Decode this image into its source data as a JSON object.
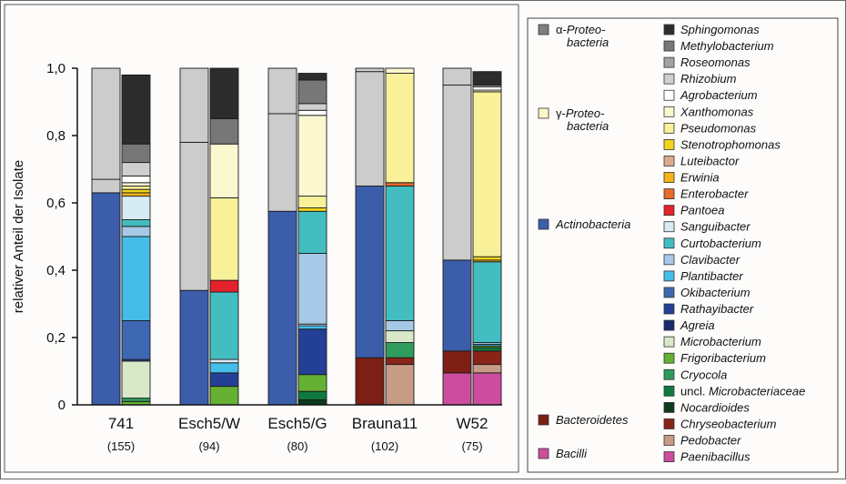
{
  "chart_data": {
    "type": "bar",
    "ylabel": "relativer Anteil der Isolate",
    "ylim": [
      0,
      1
    ],
    "ytick_labels": [
      "0",
      "0,2",
      "0,4",
      "0,6",
      "0,8",
      "1,0"
    ],
    "yticks": [
      0,
      0.2,
      0.4,
      0.6,
      0.8,
      1.0
    ],
    "groups": [
      {
        "name": "741",
        "n": "(155)"
      },
      {
        "name": "Esch5/W",
        "n": "(94)"
      },
      {
        "name": "Esch5/G",
        "n": "(80)"
      },
      {
        "name": "Brauna11",
        "n": "(102)"
      },
      {
        "name": "W52",
        "n": "(75)"
      }
    ],
    "phylum_legend": [
      {
        "label_parts": [
          "α-",
          "Proteo-",
          "bacteria"
        ],
        "color": "#7f7f7f"
      },
      {
        "label_parts": [
          "γ-",
          "Proteo-",
          "bacteria"
        ],
        "color": "#fbf7c8"
      },
      {
        "label_parts": [
          "",
          "Actinobacteria",
          ""
        ],
        "color": "#3b5daa"
      },
      {
        "label_parts": [
          "",
          "Bacteroidetes",
          ""
        ],
        "color": "#7e1f15"
      },
      {
        "label_parts": [
          "",
          "Bacilli",
          ""
        ],
        "color": "#cc4d9e"
      }
    ],
    "genus_legend": [
      {
        "name": "Sphingomonas",
        "color": "#2c2c2c"
      },
      {
        "name": "Methylobacterium",
        "color": "#777777"
      },
      {
        "name": "Roseomonas",
        "color": "#a3a3a3"
      },
      {
        "name": "Rhizobium",
        "color": "#cfcfcf"
      },
      {
        "name": "Agrobacterium",
        "color": "#ffffff"
      },
      {
        "name": "Xanthomonas",
        "color": "#fbf7cf"
      },
      {
        "name": "Pseudomonas",
        "color": "#f8f19a"
      },
      {
        "name": "Stenotrophomonas",
        "color": "#f3d51b"
      },
      {
        "name": "Luteibactor",
        "color": "#dcab8c"
      },
      {
        "name": "Erwinia",
        "color": "#f5b316"
      },
      {
        "name": "Enterobacter",
        "color": "#e8692c"
      },
      {
        "name": "Pantoea",
        "color": "#e3222b"
      },
      {
        "name": "Sanguibacter",
        "color": "#d6ebf3"
      },
      {
        "name": "Curtobacterium",
        "color": "#44bdc1"
      },
      {
        "name": "Clavibacter",
        "color": "#a7c8e6"
      },
      {
        "name": "Plantibacter",
        "color": "#45bde9"
      },
      {
        "name": "Okibacterium",
        "color": "#3e67b1"
      },
      {
        "name": "Rathayibacter",
        "color": "#243f96"
      },
      {
        "name": "Agreia",
        "color": "#1a2a6c"
      },
      {
        "name": "Microbacterium",
        "color": "#d9e8c8"
      },
      {
        "name": "Frigoribacterium",
        "color": "#66b033"
      },
      {
        "name": "Cryocola",
        "color": "#2f9b5d"
      },
      {
        "name": "uncl. Microbacteriaceae",
        "color": "#0f7a3f"
      },
      {
        "name": "Nocardioides",
        "color": "#0c3a1d"
      },
      {
        "name": "Chryseobacterium",
        "color": "#8a2418"
      },
      {
        "name": "Pedobacter",
        "color": "#c79b85"
      },
      {
        "name": "Paenibacillus",
        "color": "#cc4d9e"
      }
    ],
    "phylum_series": [
      {
        "group": "741",
        "segments": [
          {
            "phylum": "Actinobacteria",
            "value": 0.63
          },
          {
            "phylum": "γ-Proteobacteria",
            "value": 0.04
          },
          {
            "phylum": "α-Proteobacteria",
            "value": 0.33
          }
        ]
      },
      {
        "group": "Esch5/W",
        "segments": [
          {
            "phylum": "Actinobacteria",
            "value": 0.34
          },
          {
            "phylum": "γ-Proteobacteria",
            "value": 0.44
          },
          {
            "phylum": "α-Proteobacteria",
            "value": 0.22
          }
        ]
      },
      {
        "group": "Esch5/G",
        "segments": [
          {
            "phylum": "Actinobacteria",
            "value": 0.575
          },
          {
            "phylum": "γ-Proteobacteria",
            "value": 0.29
          },
          {
            "phylum": "α-Proteobacteria",
            "value": 0.135
          }
        ]
      },
      {
        "group": "Brauna11",
        "segments": [
          {
            "phylum": "Bacteroidetes",
            "value": 0.14
          },
          {
            "phylum": "Actinobacteria",
            "value": 0.51
          },
          {
            "phylum": "γ-Proteobacteria",
            "value": 0.34
          },
          {
            "phylum": "α-Proteobacteria",
            "value": 0.01
          }
        ]
      },
      {
        "group": "W52",
        "segments": [
          {
            "phylum": "Bacilli",
            "value": 0.095
          },
          {
            "phylum": "Bacteroidetes",
            "value": 0.065
          },
          {
            "phylum": "Actinobacteria",
            "value": 0.27
          },
          {
            "phylum": "γ-Proteobacteria",
            "value": 0.52
          },
          {
            "phylum": "α-Proteobacteria",
            "value": 0.05
          }
        ]
      }
    ],
    "genus_series": [
      {
        "group": "741",
        "segments": [
          {
            "genus": "Frigoribacterium",
            "value": 0.01
          },
          {
            "genus": "Cryocola",
            "value": 0.01
          },
          {
            "genus": "Microbacterium",
            "value": 0.11
          },
          {
            "genus": "Rathayibacter",
            "value": 0.005
          },
          {
            "genus": "Okibacterium",
            "value": 0.115
          },
          {
            "genus": "Plantibacter",
            "value": 0.25
          },
          {
            "genus": "Clavibacter",
            "value": 0.03
          },
          {
            "genus": "Curtobacterium",
            "value": 0.02
          },
          {
            "genus": "Sanguibacter",
            "value": 0.07
          },
          {
            "genus": "Erwinia",
            "value": 0.01
          },
          {
            "genus": "Stenotrophomonas",
            "value": 0.01
          },
          {
            "genus": "Pseudomonas",
            "value": 0.01
          },
          {
            "genus": "Xanthomonas",
            "value": 0.01
          },
          {
            "genus": "Agrobacterium",
            "value": 0.02
          },
          {
            "genus": "Rhizobium",
            "value": 0.04
          },
          {
            "genus": "Methylobacterium",
            "value": 0.055
          },
          {
            "genus": "Sphingomonas",
            "value": 0.205
          }
        ]
      },
      {
        "group": "Esch5/W",
        "segments": [
          {
            "genus": "Frigoribacterium",
            "value": 0.055
          },
          {
            "genus": "Rathayibacter",
            "value": 0.04
          },
          {
            "genus": "Plantibacter",
            "value": 0.03
          },
          {
            "genus": "Sanguibacter",
            "value": 0.01
          },
          {
            "genus": "Curtobacterium",
            "value": 0.2
          },
          {
            "genus": "Pantoea",
            "value": 0.035
          },
          {
            "genus": "Pseudomonas",
            "value": 0.245
          },
          {
            "genus": "Xanthomonas",
            "value": 0.16
          },
          {
            "genus": "Methylobacterium",
            "value": 0.075
          },
          {
            "genus": "Sphingomonas",
            "value": 0.15
          }
        ]
      },
      {
        "group": "Esch5/G",
        "segments": [
          {
            "genus": "Nocardioides",
            "value": 0.015
          },
          {
            "genus": "uncl. Microbacteriaceae",
            "value": 0.025
          },
          {
            "genus": "Frigoribacterium",
            "value": 0.05
          },
          {
            "genus": "Rathayibacter",
            "value": 0.135
          },
          {
            "genus": "Plantibacter",
            "value": 0.01
          },
          {
            "genus": "Sanguibacter",
            "value": 0.005
          },
          {
            "genus": "Clavibacter",
            "value": 0.21
          },
          {
            "genus": "Curtobacterium",
            "value": 0.125
          },
          {
            "genus": "Stenotrophomonas",
            "value": 0.01
          },
          {
            "genus": "Pseudomonas",
            "value": 0.035
          },
          {
            "genus": "Xanthomonas",
            "value": 0.24
          },
          {
            "genus": "Agrobacterium",
            "value": 0.015
          },
          {
            "genus": "Rhizobium",
            "value": 0.02
          },
          {
            "genus": "Methylobacterium",
            "value": 0.07
          },
          {
            "genus": "Sphingomonas",
            "value": 0.02
          }
        ]
      },
      {
        "group": "Brauna11",
        "segments": [
          {
            "genus": "Pedobacter",
            "value": 0.12
          },
          {
            "genus": "Chryseobacterium",
            "value": 0.02
          },
          {
            "genus": "Cryocola",
            "value": 0.045
          },
          {
            "genus": "Microbacterium",
            "value": 0.035
          },
          {
            "genus": "Clavibacter",
            "value": 0.03
          },
          {
            "genus": "Curtobacterium",
            "value": 0.4
          },
          {
            "genus": "Enterobacter",
            "value": 0.01
          },
          {
            "genus": "Pseudomonas",
            "value": 0.325
          },
          {
            "genus": "Xanthomonas",
            "value": 0.015
          }
        ]
      },
      {
        "group": "W52",
        "segments": [
          {
            "genus": "Paenibacillus",
            "value": 0.095
          },
          {
            "genus": "Pedobacter",
            "value": 0.025
          },
          {
            "genus": "Chryseobacterium",
            "value": 0.04
          },
          {
            "genus": "uncl. Microbacteriaceae",
            "value": 0.01
          },
          {
            "genus": "Frigoribacterium",
            "value": 0.005
          },
          {
            "genus": "Plantibacter",
            "value": 0.005
          },
          {
            "genus": "Clavibacter",
            "value": 0.005
          },
          {
            "genus": "Curtobacterium",
            "value": 0.24
          },
          {
            "genus": "Erwinia",
            "value": 0.005
          },
          {
            "genus": "Stenotrophomonas",
            "value": 0.01
          },
          {
            "genus": "Pseudomonas",
            "value": 0.49
          },
          {
            "genus": "Xanthomonas",
            "value": 0.005
          },
          {
            "genus": "Agrobacterium",
            "value": 0.01
          },
          {
            "genus": "Roseomonas",
            "value": 0.005
          },
          {
            "genus": "Sphingomonas",
            "value": 0.04
          }
        ]
      }
    ]
  }
}
